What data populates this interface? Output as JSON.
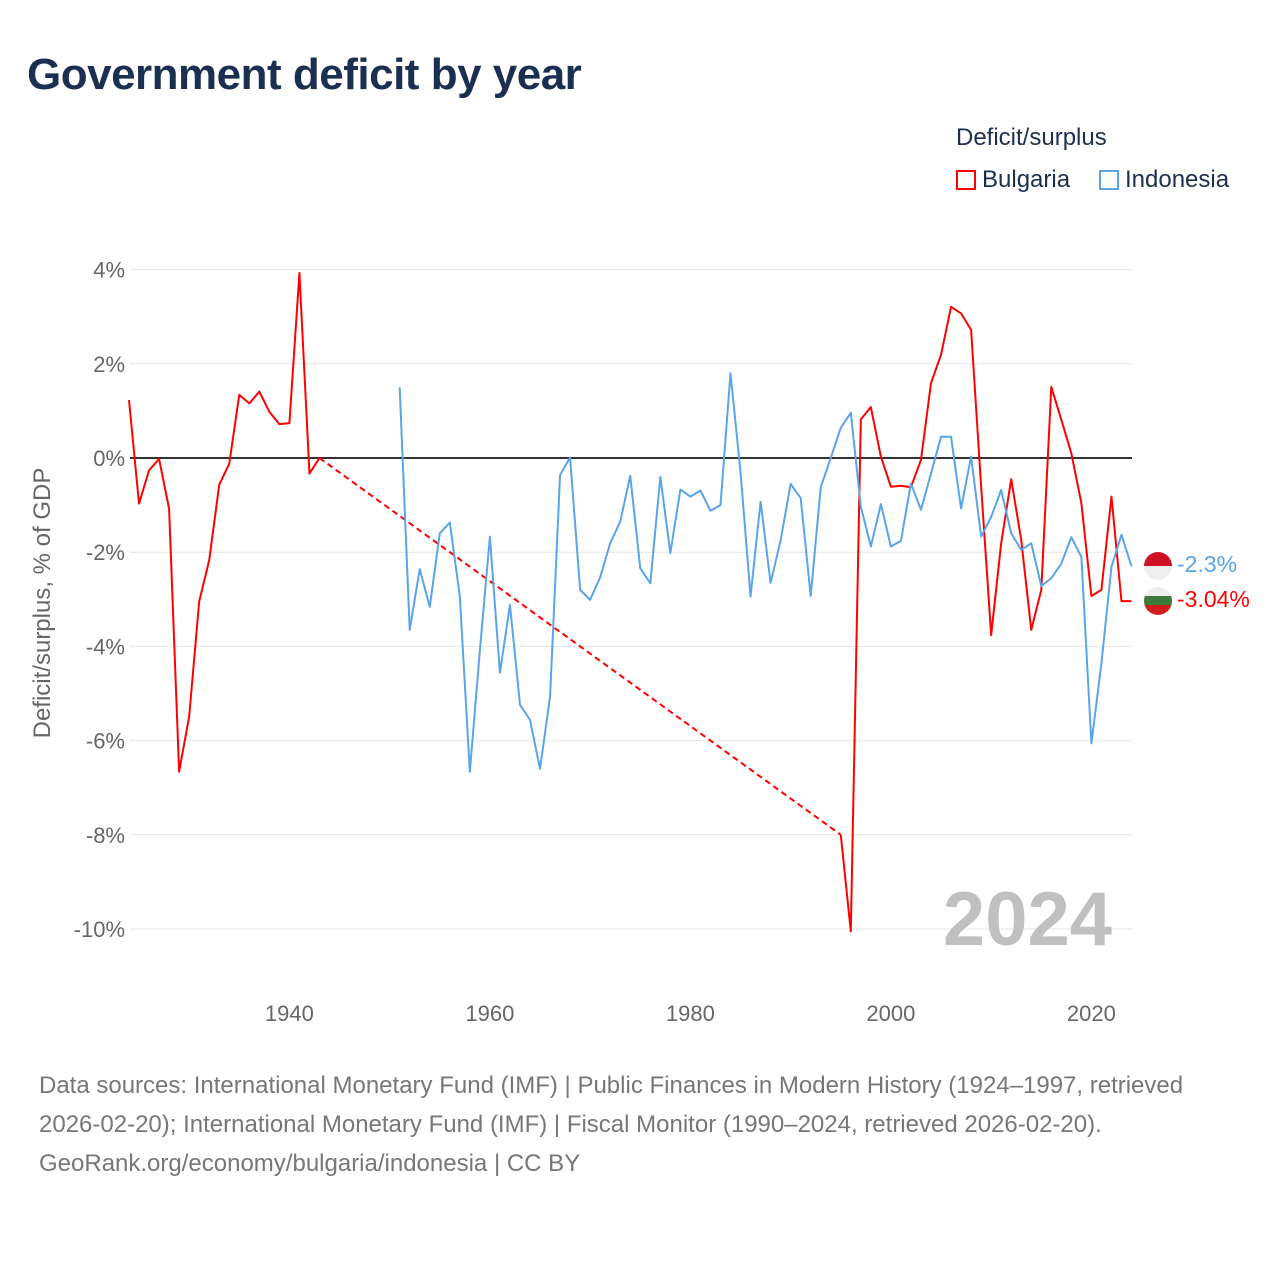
{
  "title": "Government deficit by year",
  "legend": {
    "title": "Deficit/surplus",
    "items": [
      {
        "label": "Bulgaria",
        "color": "#ff0000"
      },
      {
        "label": "Indonesia",
        "color": "#5aa5ea"
      }
    ]
  },
  "footer": {
    "sources": "Data sources: International Monetary Fund (IMF) | Public Finances in Modern History (1924–1997, retrieved 2026-02-20); International Monetary Fund (IMF) | Fiscal Monitor (1990–2024, retrieved 2026-02-20).",
    "credit": "GeoRank.org/economy/bulgaria/indonesia | CC BY"
  },
  "chart_data": {
    "type": "line",
    "title": "Government deficit by year",
    "xlabel": "",
    "ylabel": "Deficit/surplus, % of GDP",
    "xlim": [
      1924,
      2024
    ],
    "ylim": [
      -10,
      4
    ],
    "x_ticks": [
      1940,
      1960,
      1980,
      2000,
      2020
    ],
    "y_ticks": [
      {
        "v": 4,
        "label": "4%"
      },
      {
        "v": 2,
        "label": "2%"
      },
      {
        "v": 0,
        "label": "0%"
      },
      {
        "v": -2,
        "label": "-2%"
      },
      {
        "v": -4,
        "label": "-4%"
      },
      {
        "v": -6,
        "label": "-6%"
      },
      {
        "v": -8,
        "label": "-8%"
      },
      {
        "v": -10,
        "label": "-10%"
      }
    ],
    "year_watermark": "2024",
    "series": [
      {
        "name": "Bulgaria",
        "color": "#ff0000",
        "end_label": "-3.04%",
        "points": [
          [
            1924,
            1.23
          ],
          [
            1925,
            -0.97
          ],
          [
            1926,
            -0.26
          ],
          [
            1927,
            -0.02
          ],
          [
            1928,
            -1.08
          ],
          [
            1929,
            -6.66
          ],
          [
            1930,
            -5.49
          ],
          [
            1931,
            -3.05
          ],
          [
            1932,
            -2.17
          ],
          [
            1933,
            -0.57
          ],
          [
            1934,
            -0.12
          ],
          [
            1935,
            1.34
          ],
          [
            1936,
            1.16
          ],
          [
            1937,
            1.41
          ],
          [
            1938,
            0.98
          ],
          [
            1939,
            0.72
          ],
          [
            1940,
            0.74
          ],
          [
            1941,
            3.93
          ],
          [
            1942,
            -0.33
          ],
          [
            1943,
            0.0
          ],
          [
            1995,
            -8.0
          ],
          [
            1996,
            -10.05
          ],
          [
            1997,
            0.82
          ],
          [
            1998,
            1.08
          ],
          [
            1999,
            0.03
          ],
          [
            2000,
            -0.61
          ],
          [
            2001,
            -0.59
          ],
          [
            2002,
            -0.62
          ],
          [
            2003,
            -0.04
          ],
          [
            2004,
            1.59
          ],
          [
            2005,
            2.19
          ],
          [
            2006,
            3.21
          ],
          [
            2007,
            3.07
          ],
          [
            2008,
            2.72
          ],
          [
            2009,
            -0.6
          ],
          [
            2010,
            -3.76
          ],
          [
            2011,
            -1.81
          ],
          [
            2012,
            -0.45
          ],
          [
            2013,
            -1.74
          ],
          [
            2014,
            -3.65
          ],
          [
            2015,
            -2.8
          ],
          [
            2016,
            1.51
          ],
          [
            2017,
            0.81
          ],
          [
            2018,
            0.1
          ],
          [
            2019,
            -0.96
          ],
          [
            2020,
            -2.93
          ],
          [
            2021,
            -2.8
          ],
          [
            2022,
            -0.82
          ],
          [
            2023,
            -3.04
          ],
          [
            2024,
            -3.04
          ]
        ]
      },
      {
        "name": "Indonesia",
        "color": "#5aa5ea",
        "end_label": "-2.3%",
        "points": [
          [
            1951,
            1.5
          ],
          [
            1952,
            -3.65
          ],
          [
            1953,
            -2.36
          ],
          [
            1954,
            -3.16
          ],
          [
            1955,
            -1.6
          ],
          [
            1956,
            -1.37
          ],
          [
            1957,
            -2.94
          ],
          [
            1958,
            -6.66
          ],
          [
            1959,
            -4.08
          ],
          [
            1960,
            -1.67
          ],
          [
            1961,
            -4.56
          ],
          [
            1962,
            -3.12
          ],
          [
            1963,
            -5.24
          ],
          [
            1964,
            -5.56
          ],
          [
            1965,
            -6.6
          ],
          [
            1966,
            -5.07
          ],
          [
            1967,
            -0.36
          ],
          [
            1968,
            0.01
          ],
          [
            1969,
            -2.8
          ],
          [
            1970,
            -3.01
          ],
          [
            1971,
            -2.53
          ],
          [
            1972,
            -1.81
          ],
          [
            1973,
            -1.35
          ],
          [
            1974,
            -0.38
          ],
          [
            1975,
            -2.34
          ],
          [
            1976,
            -2.66
          ],
          [
            1977,
            -0.4
          ],
          [
            1978,
            -2.02
          ],
          [
            1979,
            -0.67
          ],
          [
            1980,
            -0.82
          ],
          [
            1981,
            -0.69
          ],
          [
            1982,
            -1.12
          ],
          [
            1983,
            -1.0
          ],
          [
            1984,
            1.8
          ],
          [
            1985,
            -0.3
          ],
          [
            1986,
            -2.94
          ],
          [
            1987,
            -0.93
          ],
          [
            1988,
            -2.65
          ],
          [
            1989,
            -1.75
          ],
          [
            1990,
            -0.55
          ],
          [
            1991,
            -0.85
          ],
          [
            1992,
            -2.93
          ],
          [
            1993,
            -0.62
          ],
          [
            1994,
            0.0
          ],
          [
            1995,
            0.64
          ],
          [
            1996,
            0.96
          ],
          [
            1997,
            -1.03
          ],
          [
            1998,
            -1.88
          ],
          [
            1999,
            -0.98
          ],
          [
            2000,
            -1.88
          ],
          [
            2001,
            -1.76
          ],
          [
            2002,
            -0.54
          ],
          [
            2003,
            -1.1
          ],
          [
            2004,
            -0.33
          ],
          [
            2005,
            0.45
          ],
          [
            2006,
            0.45
          ],
          [
            2007,
            -1.07
          ],
          [
            2008,
            0.03
          ],
          [
            2009,
            -1.67
          ],
          [
            2010,
            -1.25
          ],
          [
            2011,
            -0.68
          ],
          [
            2012,
            -1.6
          ],
          [
            2013,
            -1.95
          ],
          [
            2014,
            -1.81
          ],
          [
            2015,
            -2.72
          ],
          [
            2016,
            -2.55
          ],
          [
            2017,
            -2.24
          ],
          [
            2018,
            -1.68
          ],
          [
            2019,
            -2.1
          ],
          [
            2020,
            -6.06
          ],
          [
            2021,
            -4.36
          ],
          [
            2022,
            -2.31
          ],
          [
            2023,
            -1.63
          ],
          [
            2024,
            -2.3
          ]
        ]
      }
    ]
  }
}
